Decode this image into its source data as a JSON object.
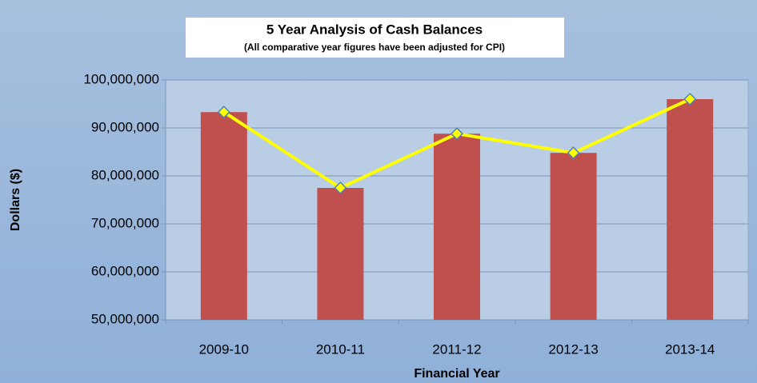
{
  "chart_data": {
    "type": "bar",
    "title": "5 Year Analysis of Cash Balances",
    "subtitle": "(All comparative year figures have been adjusted for CPI)",
    "x_label": "Financial Year",
    "y_label": "Dollars ($)",
    "categories": [
      "2009-10",
      "2010-11",
      "2011-12",
      "2012-13",
      "2013-14"
    ],
    "values": [
      93300000,
      77500000,
      88800000,
      84800000,
      96000000
    ],
    "color": "#c0504d",
    "line_overlay": true,
    "line_color": "#ffff00",
    "marker_edge_color": "#4f81bd",
    "ylim": [
      50000000,
      100000000
    ],
    "yticks": [
      {
        "value": 50000000,
        "label": "50,000,000"
      },
      {
        "value": 60000000,
        "label": "60,000,000"
      },
      {
        "value": 70000000,
        "label": "70,000,000"
      },
      {
        "value": 80000000,
        "label": "80,000,000"
      },
      {
        "value": 90000000,
        "label": "90,000,000"
      },
      {
        "value": 100000000,
        "label": "100,000,000"
      }
    ],
    "grid": true
  }
}
